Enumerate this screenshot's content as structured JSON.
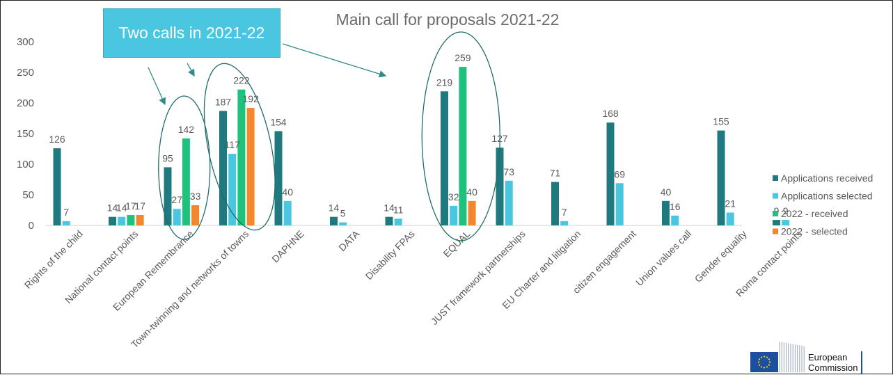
{
  "callout": {
    "text": "Two calls in 2021-22"
  },
  "logo": {
    "line1": "European",
    "line2": "Commission"
  },
  "colors": {
    "received": "#1f7a7f",
    "selected": "#4bc6e0",
    "received_2022": "#1fc27d",
    "selected_2022": "#f2872d",
    "ellipse": "#1f6b6b",
    "arrow": "#2d8b8b",
    "flag_blue": "#1d4fa0",
    "flag_stars": "#ffdd00"
  },
  "chart_data": {
    "type": "bar",
    "title": "Main call for proposals 2021-22",
    "xlabel": "",
    "ylabel": "",
    "ylim": [
      0,
      300
    ],
    "yticks": [
      0,
      50,
      100,
      150,
      200,
      250,
      300
    ],
    "grid": false,
    "legend_position": "right",
    "categories": [
      "Rights of the child",
      "National contact points",
      "European Remembrance",
      "Town-twinning and networks of towns",
      "DAPHNE",
      "DATA",
      "Disability FPAs",
      "EQUAL",
      "JUST framework partnerships",
      "EU Charter and litigation",
      "citizen engagement",
      "Union values call",
      "Gender equality",
      "Roma contact points"
    ],
    "series": [
      {
        "name": "Applications received",
        "values": [
          126,
          14,
          95,
          187,
          154,
          14,
          14,
          219,
          127,
          71,
          168,
          40,
          155,
          9
        ]
      },
      {
        "name": "Applications selected",
        "values": [
          7,
          14,
          27,
          117,
          40,
          5,
          11,
          32,
          73,
          7,
          69,
          16,
          21,
          9
        ]
      },
      {
        "name": "2022 - received",
        "values": [
          null,
          17,
          142,
          222,
          null,
          null,
          null,
          259,
          null,
          null,
          null,
          null,
          null,
          null
        ]
      },
      {
        "name": "2022 - selected",
        "values": [
          null,
          17,
          33,
          192,
          null,
          null,
          null,
          40,
          null,
          null,
          null,
          null,
          null,
          null
        ]
      }
    ],
    "highlights": [
      "European Remembrance",
      "Town-twinning and networks of towns",
      "EQUAL"
    ]
  }
}
